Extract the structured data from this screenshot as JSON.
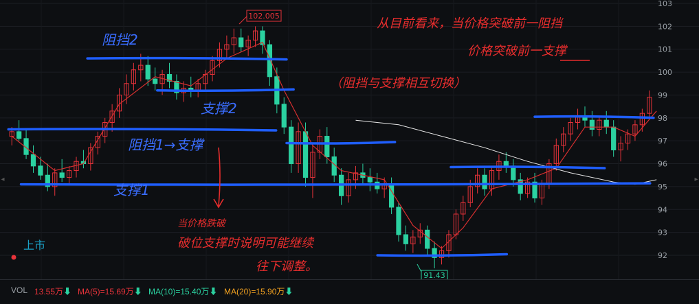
{
  "chart_data": {
    "type": "candlestick",
    "y_ticks": [
      "103",
      "102",
      "101",
      "100",
      "99",
      "98",
      "97",
      "96",
      "95",
      "94",
      "93",
      "92"
    ],
    "ylim": [
      91,
      103
    ],
    "grid": true,
    "colors": {
      "up": "#e8333a",
      "down": "#2bd1a0",
      "ma": "#d62f2f",
      "long_ma": "#e8e8e8",
      "level_line": "#1f5eff",
      "note": "#e62d2d"
    },
    "max_label": "102.005",
    "max_value": 102.0,
    "min_label": "91.43",
    "min_value": 91.43,
    "listing_label": "上市",
    "candles": [
      [
        97.2,
        97.6,
        96.8,
        97.4
      ],
      [
        97.4,
        97.9,
        97.0,
        97.1
      ],
      [
        97.1,
        97.5,
        96.2,
        96.4
      ],
      [
        96.4,
        96.8,
        95.6,
        95.9
      ],
      [
        95.9,
        96.3,
        95.3,
        95.5
      ],
      [
        95.5,
        96.0,
        94.8,
        95.0
      ],
      [
        95.0,
        95.8,
        94.6,
        95.6
      ],
      [
        95.6,
        96.2,
        95.2,
        95.4
      ],
      [
        95.4,
        95.9,
        95.1,
        95.7
      ],
      [
        95.7,
        96.3,
        95.4,
        96.1
      ],
      [
        96.1,
        96.6,
        95.8,
        96.0
      ],
      [
        96.0,
        96.9,
        95.7,
        96.7
      ],
      [
        96.7,
        97.4,
        96.4,
        97.2
      ],
      [
        97.2,
        98.0,
        96.9,
        97.8
      ],
      [
        97.8,
        98.6,
        97.4,
        98.3
      ],
      [
        98.3,
        99.3,
        98.0,
        99.0
      ],
      [
        99.0,
        99.9,
        98.6,
        99.5
      ],
      [
        99.5,
        100.4,
        99.2,
        100.1
      ],
      [
        100.1,
        100.8,
        99.6,
        100.3
      ],
      [
        100.3,
        100.7,
        99.4,
        99.7
      ],
      [
        99.7,
        100.2,
        99.2,
        99.5
      ],
      [
        99.5,
        100.1,
        99.0,
        99.9
      ],
      [
        99.9,
        100.4,
        99.3,
        99.6
      ],
      [
        99.6,
        99.9,
        98.8,
        99.1
      ],
      [
        99.1,
        99.6,
        98.7,
        99.3
      ],
      [
        99.3,
        99.8,
        98.9,
        99.2
      ],
      [
        99.2,
        99.7,
        98.9,
        99.5
      ],
      [
        99.5,
        100.1,
        99.2,
        99.9
      ],
      [
        99.9,
        100.7,
        99.6,
        100.5
      ],
      [
        100.5,
        101.3,
        100.2,
        101.0
      ],
      [
        101.0,
        101.6,
        100.6,
        101.2
      ],
      [
        101.2,
        101.9,
        100.8,
        101.5
      ],
      [
        101.5,
        101.9,
        100.9,
        101.1
      ],
      [
        101.1,
        101.6,
        100.7,
        101.4
      ],
      [
        101.4,
        102.0,
        101.1,
        101.8
      ],
      [
        101.8,
        102.0,
        100.8,
        101.2
      ],
      [
        101.2,
        101.4,
        99.4,
        99.8
      ],
      [
        99.8,
        100.2,
        98.2,
        98.6
      ],
      [
        98.6,
        98.9,
        97.3,
        97.6
      ],
      [
        97.6,
        97.9,
        95.6,
        96.0
      ],
      [
        96.0,
        97.8,
        95.6,
        97.4
      ],
      [
        97.4,
        97.8,
        95.0,
        95.4
      ],
      [
        95.4,
        96.8,
        94.5,
        96.5
      ],
      [
        96.5,
        97.5,
        96.2,
        97.2
      ],
      [
        97.2,
        97.6,
        96.0,
        96.3
      ],
      [
        96.3,
        96.7,
        95.2,
        95.5
      ],
      [
        95.5,
        95.8,
        94.2,
        94.6
      ],
      [
        94.6,
        95.6,
        94.3,
        95.3
      ],
      [
        95.3,
        95.9,
        94.9,
        95.6
      ],
      [
        95.6,
        96.0,
        95.1,
        95.4
      ],
      [
        95.4,
        95.8,
        94.8,
        95.2
      ],
      [
        95.2,
        95.6,
        94.7,
        94.9
      ],
      [
        94.9,
        95.4,
        94.5,
        95.1
      ],
      [
        95.1,
        95.4,
        93.8,
        94.1
      ],
      [
        94.1,
        94.3,
        92.6,
        92.9
      ],
      [
        92.9,
        93.3,
        92.2,
        92.5
      ],
      [
        92.5,
        93.1,
        92.1,
        92.8
      ],
      [
        92.8,
        93.4,
        92.5,
        93.1
      ],
      [
        93.1,
        93.3,
        92.0,
        92.3
      ],
      [
        92.3,
        92.6,
        91.43,
        91.9
      ],
      [
        91.9,
        92.4,
        91.6,
        92.2
      ],
      [
        92.2,
        93.1,
        91.9,
        92.9
      ],
      [
        92.9,
        94.0,
        92.7,
        93.8
      ],
      [
        93.8,
        94.6,
        93.5,
        94.3
      ],
      [
        94.3,
        95.3,
        94.1,
        95.0
      ],
      [
        95.0,
        95.8,
        94.7,
        95.5
      ],
      [
        95.5,
        95.8,
        94.6,
        94.9
      ],
      [
        94.9,
        95.9,
        94.6,
        95.7
      ],
      [
        95.7,
        96.4,
        95.3,
        96.1
      ],
      [
        96.1,
        96.5,
        95.6,
        95.9
      ],
      [
        95.9,
        96.2,
        95.0,
        95.3
      ],
      [
        95.3,
        95.6,
        94.4,
        94.7
      ],
      [
        94.7,
        95.4,
        94.5,
        95.2
      ],
      [
        95.2,
        95.6,
        94.3,
        94.5
      ],
      [
        94.5,
        95.3,
        94.2,
        95.1
      ],
      [
        95.1,
        96.2,
        94.9,
        96.0
      ],
      [
        96.0,
        97.1,
        95.7,
        96.8
      ],
      [
        96.8,
        97.6,
        96.5,
        97.3
      ],
      [
        97.3,
        98.0,
        97.0,
        97.8
      ],
      [
        97.8,
        98.4,
        97.5,
        98.1
      ],
      [
        98.1,
        98.5,
        97.6,
        97.9
      ],
      [
        97.9,
        98.3,
        97.2,
        97.5
      ],
      [
        97.5,
        98.1,
        97.2,
        97.9
      ],
      [
        97.9,
        98.3,
        97.3,
        97.6
      ],
      [
        97.6,
        97.9,
        96.3,
        96.6
      ],
      [
        96.6,
        97.2,
        96.1,
        96.9
      ],
      [
        96.9,
        97.5,
        96.6,
        97.3
      ],
      [
        97.3,
        97.9,
        97.0,
        97.7
      ],
      [
        97.7,
        98.4,
        97.4,
        98.2
      ],
      [
        98.2,
        99.2,
        98.0,
        98.9
      ]
    ],
    "ma_line": [
      [
        0,
        97.2
      ],
      [
        6,
        95.7
      ],
      [
        10,
        96.0
      ],
      [
        15,
        98.6
      ],
      [
        20,
        99.8
      ],
      [
        25,
        99.4
      ],
      [
        30,
        100.6
      ],
      [
        35,
        101.3
      ],
      [
        38,
        99.2
      ],
      [
        42,
        96.8
      ],
      [
        46,
        95.7
      ],
      [
        52,
        95.3
      ],
      [
        56,
        93.3
      ],
      [
        60,
        92.3
      ],
      [
        63,
        93.2
      ],
      [
        67,
        94.9
      ],
      [
        72,
        95.3
      ],
      [
        76,
        95.8
      ],
      [
        80,
        97.6
      ],
      [
        84,
        97.6
      ],
      [
        87,
        97.2
      ],
      [
        90,
        98.3
      ]
    ],
    "long_ma_line": [
      [
        48,
        97.9
      ],
      [
        54,
        97.7
      ],
      [
        60,
        97.2
      ],
      [
        66,
        96.7
      ],
      [
        72,
        96.1
      ],
      [
        78,
        95.6
      ],
      [
        84,
        95.2
      ],
      [
        87,
        95.1
      ],
      [
        90,
        95.3
      ]
    ],
    "level_lines": [
      {
        "y": 100.6,
        "x0": 0.125,
        "x1": 0.41
      },
      {
        "y": 99.2,
        "x0": 0.225,
        "x1": 0.42
      },
      {
        "y": 97.5,
        "x0": 0.012,
        "x1": 0.395
      },
      {
        "y": 96.9,
        "x0": 0.41,
        "x1": 0.565
      },
      {
        "y": 95.85,
        "x0": 0.645,
        "x1": 0.865
      },
      {
        "y": 95.1,
        "x0": 0.03,
        "x1": 0.93
      },
      {
        "y": 98.05,
        "x0": 0.765,
        "x1": 0.935
      },
      {
        "y": 92.0,
        "x0": 0.54,
        "x1": 0.725
      }
    ],
    "annotations": {
      "resist_2": "阻挡2",
      "support_2": "支撑2",
      "resist_1_to_support": "阻挡1→支撑",
      "support_1": "支撑1",
      "note_line1": "从目前看来，当价格突破前一阻挡",
      "note_line2": "价格突破前一支撑",
      "note_line3": "（阻挡与支撑相互切换）",
      "break_line1": "当价格跌破",
      "break_line2": "破位支撑时说明可能继续",
      "break_line3": "往下调整。"
    }
  },
  "volume_bar": {
    "vol_label": "VOL",
    "vol_value": "13.55万",
    "ma5_label": "MA(5)=15.69万",
    "ma10_label": "MA(10)=15.40万",
    "ma20_label": "MA(20)=15.90万",
    "colors": {
      "vol": "#e8333a",
      "ma5": "#e8333a",
      "ma10": "#2bd1a0",
      "ma20": "#f0a020"
    }
  }
}
